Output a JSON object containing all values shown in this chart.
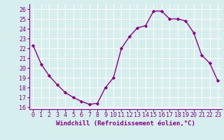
{
  "x": [
    0,
    1,
    2,
    3,
    4,
    5,
    6,
    7,
    8,
    9,
    10,
    11,
    12,
    13,
    14,
    15,
    16,
    17,
    18,
    19,
    20,
    21,
    22,
    23
  ],
  "y": [
    22.3,
    20.4,
    19.2,
    18.3,
    17.5,
    17.0,
    16.6,
    16.3,
    16.4,
    18.0,
    19.0,
    22.0,
    23.2,
    24.1,
    24.3,
    25.8,
    25.8,
    25.0,
    25.0,
    24.8,
    23.6,
    21.3,
    20.5,
    18.7
  ],
  "line_color": "#8B008B",
  "marker": "D",
  "marker_size": 2.2,
  "linewidth": 1.0,
  "xlabel": "Windchill (Refroidissement éolien,°C)",
  "xlabel_fontsize": 6.5,
  "ylabel_ticks": [
    16,
    17,
    18,
    19,
    20,
    21,
    22,
    23,
    24,
    25,
    26
  ],
  "xlim": [
    -0.5,
    23.5
  ],
  "ylim": [
    15.8,
    26.5
  ],
  "bg_color": "#d6eeee",
  "grid_color": "#ffffff",
  "tick_fontsize": 6.0,
  "xtick_labels": [
    "0",
    "1",
    "2",
    "3",
    "4",
    "5",
    "6",
    "7",
    "8",
    "9",
    "10",
    "11",
    "12",
    "13",
    "14",
    "15",
    "16",
    "17",
    "18",
    "19",
    "20",
    "21",
    "22",
    "23"
  ]
}
